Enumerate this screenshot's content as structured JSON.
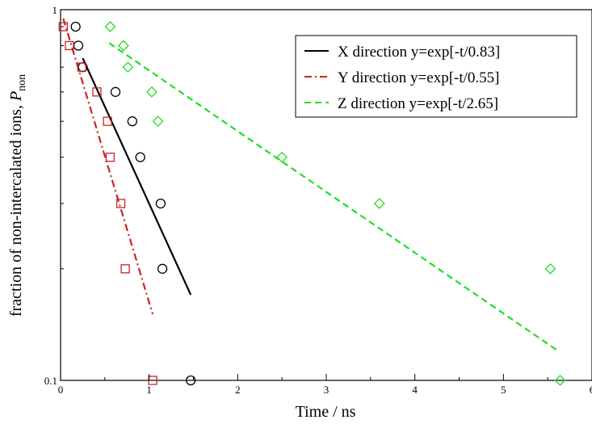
{
  "chart_data": {
    "type": "scatter",
    "xlabel": "Time / ns",
    "ylabel": "fraction of non-intercalated ions, ",
    "ylabel_symbol": "P",
    "ylabel_subscript": "non",
    "xlim": [
      0,
      6
    ],
    "ylim": [
      0.1,
      1
    ],
    "y_scale": "log",
    "x_ticks": [
      0,
      1,
      2,
      3,
      4,
      5,
      6
    ],
    "x_tick_labels": [
      "0",
      "1",
      "2",
      "3",
      "4",
      "5",
      "6"
    ],
    "y_tick_labels": [
      {
        "value": 0.1,
        "label": "0.1"
      },
      {
        "value": 1,
        "label": "1"
      }
    ],
    "y_minor_ticks": [
      0.2,
      0.3,
      0.4,
      0.5,
      0.6,
      0.7,
      0.8,
      0.9
    ],
    "grid": false,
    "legend_position": "top-right",
    "series": [
      {
        "name": "X direction y=exp[-t/0.83]",
        "marker": "circle",
        "color": "#000000",
        "line_style": "solid",
        "points": [
          [
            0.17,
            0.9
          ],
          [
            0.2,
            0.8
          ],
          [
            0.25,
            0.7
          ],
          [
            0.62,
            0.6
          ],
          [
            0.81,
            0.5
          ],
          [
            0.9,
            0.4
          ],
          [
            1.13,
            0.3
          ],
          [
            1.15,
            0.2
          ],
          [
            1.47,
            0.1
          ]
        ],
        "fit_x_range": [
          0.25,
          1.47
        ]
      },
      {
        "name": "Y direction y=exp[-t/0.55]",
        "marker": "square",
        "color": "#cc2222",
        "line_style": "dashdot",
        "points": [
          [
            0.03,
            0.9
          ],
          [
            0.1,
            0.8
          ],
          [
            0.24,
            0.7
          ],
          [
            0.41,
            0.6
          ],
          [
            0.53,
            0.5
          ],
          [
            0.56,
            0.4
          ],
          [
            0.68,
            0.3
          ],
          [
            0.73,
            0.2
          ],
          [
            1.04,
            0.1
          ]
        ],
        "fit_x_range": [
          0.03,
          1.04
        ]
      },
      {
        "name": "Z direction y=exp[-t/2.65]",
        "marker": "diamond",
        "color": "#22dd22",
        "line_style": "dashed",
        "points": [
          [
            0.56,
            0.9
          ],
          [
            0.71,
            0.8
          ],
          [
            0.76,
            0.7
          ],
          [
            1.03,
            0.6
          ],
          [
            1.1,
            0.5
          ],
          [
            2.5,
            0.4
          ],
          [
            3.6,
            0.3
          ],
          [
            5.53,
            0.2
          ],
          [
            5.64,
            0.1
          ]
        ],
        "fit_x_range": [
          0.55,
          5.63
        ]
      }
    ]
  }
}
